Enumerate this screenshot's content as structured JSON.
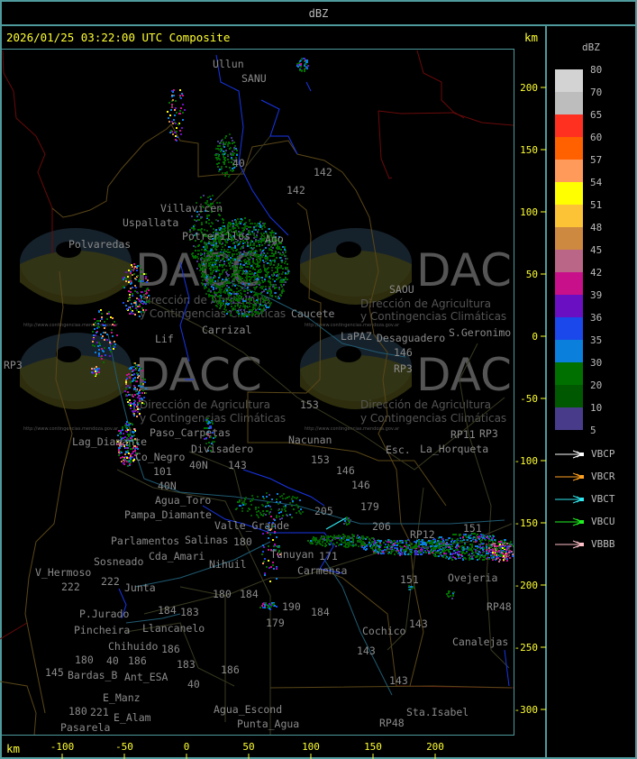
{
  "window": {
    "title": "dBZ"
  },
  "header": {
    "timestamp": "2026/01/25 03:22:00 UTC Composite",
    "unit_top": "km",
    "unit_bottom": "km"
  },
  "axes": {
    "x_ticks": [
      "-100",
      "-50",
      "0",
      "50",
      "100",
      "150",
      "200"
    ],
    "y_ticks": [
      "200",
      "150",
      "100",
      "50",
      "0",
      "-50",
      "-100",
      "-150",
      "-200",
      "-250",
      "-300"
    ],
    "color": "#ffff30"
  },
  "legend": {
    "title": "dBZ",
    "levels": [
      {
        "label": "80",
        "color": "#d3d3d3"
      },
      {
        "label": "70",
        "color": "#bdbdbd"
      },
      {
        "label": "65",
        "color": "#ff3020"
      },
      {
        "label": "60",
        "color": "#ff6000"
      },
      {
        "label": "57",
        "color": "#ff9a5a"
      },
      {
        "label": "54",
        "color": "#ffff00"
      },
      {
        "label": "51",
        "color": "#fbc335"
      },
      {
        "label": "48",
        "color": "#cd8940"
      },
      {
        "label": "45",
        "color": "#ba6686"
      },
      {
        "label": "42",
        "color": "#c8108a"
      },
      {
        "label": "39",
        "color": "#6a10c2"
      },
      {
        "label": "36",
        "color": "#1a48ea"
      },
      {
        "label": "35",
        "color": "#0a80dc"
      },
      {
        "label": "30",
        "color": "#007000"
      },
      {
        "label": "20",
        "color": "#005800"
      },
      {
        "label": "10",
        "color": "#483c8a"
      },
      {
        "label": "5",
        "color": ""
      }
    ],
    "radars": [
      {
        "label": "VBCP",
        "color": "#ffffff"
      },
      {
        "label": "VBCR",
        "color": "#ffa020"
      },
      {
        "label": "VBCT",
        "color": "#30e8f0"
      },
      {
        "label": "VBCU",
        "color": "#20f020"
      },
      {
        "label": "VBBB",
        "color": "#ffc0c8"
      }
    ]
  },
  "watermark": {
    "logo": "DACC",
    "line1": "Dirección de Agricultura",
    "line2": "y Contingencias Climáticas",
    "url": "http://www.contingencias.mendoza.gov.ar"
  },
  "map": {
    "places": [
      "Ullun",
      "SANU",
      "Villavicen",
      "Uspallata",
      "Polvaredas",
      "Potrerillos",
      "142",
      "142",
      "40",
      "Carrizal",
      "Caucete",
      "LaPAZ",
      "Desaguadero",
      "S.Geronimo",
      "SAOU",
      "146",
      "RP3",
      "RP3",
      "RP11",
      "153",
      "Nacunan",
      "La_Horqueta",
      "Esc.",
      "153",
      "146",
      "146",
      "Paso_Carpetas",
      "Divisadero",
      "Lag_Diamante",
      "Co_Negro",
      "40N",
      "101",
      "40N",
      "143",
      "Agua_Toro",
      "Pampa_Diamante",
      "Valle_Grande",
      "Salinas",
      "180",
      "Cda_Amari",
      "Parlamentos",
      "Sosneado",
      "V_Hermoso",
      "222",
      "222",
      "Junta",
      "Nihuil",
      "P.Jurado",
      "Pincheira",
      "Llancanelo",
      "184",
      "183",
      "180",
      "184",
      "Chihuido",
      "186",
      "186",
      "Ant_ESA",
      "183",
      "40",
      "145",
      "Bardas_B",
      "180",
      "186",
      "40",
      "E_Manz",
      "221",
      "E_Alam",
      "Pasarela",
      "180",
      "Agua_Escond",
      "Punta_Agua",
      "179",
      "190",
      "184",
      "Carmensa",
      "171",
      "205",
      "206",
      "RP12",
      "151",
      "151",
      "143",
      "Cochico",
      "143",
      "143",
      "Sta.Isabel",
      "RP48",
      "RP48",
      "Canalejas",
      "Ovejeria",
      "179",
      "Tunuyan",
      "Lif",
      "Ago",
      "RP3"
    ]
  }
}
